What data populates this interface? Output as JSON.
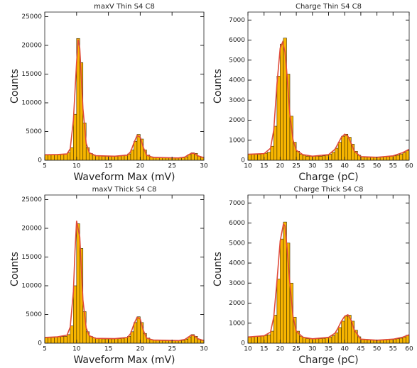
{
  "chart_data": [
    {
      "type": "histogram",
      "title": "maxV  Thin S4 C8",
      "x_label": "Waveform Max (mV)",
      "y_label": "Counts",
      "bins": [
        5,
        5.5,
        6,
        6.5,
        7,
        7.5,
        8,
        8.5,
        9,
        9.5,
        10,
        10.5,
        11,
        11.5,
        12,
        12.5,
        13,
        13.5,
        14,
        14.5,
        15,
        15.5,
        16,
        16.5,
        17,
        17.5,
        18,
        18.5,
        19,
        19.5,
        20,
        20.5,
        21,
        21.5,
        22,
        22.5,
        23,
        23.5,
        24,
        24.5,
        25,
        25.5,
        26,
        26.5,
        27,
        27.5,
        28,
        28.5,
        29,
        29.5,
        30
      ],
      "values": [
        900,
        950,
        950,
        1000,
        1000,
        1050,
        1100,
        1300,
        2200,
        8000,
        21200,
        17000,
        6500,
        2200,
        1200,
        900,
        800,
        750,
        700,
        700,
        700,
        700,
        700,
        750,
        800,
        900,
        1100,
        1800,
        3300,
        4500,
        3700,
        1800,
        900,
        600,
        500,
        450,
        450,
        400,
        400,
        400,
        400,
        400,
        400,
        450,
        600,
        1000,
        1300,
        1200,
        700,
        500
      ],
      "color": "#f7b500",
      "fit": {
        "color": "#e04a3a",
        "x": [
          5,
          7,
          8.5,
          9,
          9.5,
          10,
          10.25,
          10.5,
          11,
          11.5,
          12,
          13,
          16,
          18,
          18.5,
          19,
          19.5,
          20,
          20.5,
          21,
          22,
          26,
          27,
          27.5,
          28,
          28.5,
          29,
          30
        ],
        "values": [
          950,
          1000,
          1100,
          2000,
          7000,
          17000,
          21000,
          19500,
          9000,
          3000,
          1300,
          800,
          700,
          900,
          1500,
          3000,
          4300,
          4000,
          2200,
          900,
          500,
          400,
          550,
          900,
          1200,
          1200,
          800,
          450
        ]
      },
      "xlim": [
        5,
        30
      ],
      "ylim": [
        0,
        25800
      ],
      "xticks": [
        5,
        10,
        15,
        20,
        25,
        30
      ],
      "yticks": [
        0,
        5000,
        10000,
        15000,
        20000,
        25000
      ]
    },
    {
      "type": "histogram",
      "title": "Charge  Thin S4 C8",
      "x_label": "Charge (pC)",
      "y_label": "Counts",
      "bins": [
        10,
        11,
        12,
        13,
        14,
        15,
        16,
        17,
        18,
        19,
        20,
        21,
        22,
        23,
        24,
        25,
        26,
        27,
        28,
        29,
        30,
        31,
        32,
        33,
        34,
        35,
        36,
        37,
        38,
        39,
        40,
        41,
        42,
        43,
        44,
        45,
        46,
        47,
        48,
        49,
        50,
        51,
        52,
        53,
        54,
        55,
        56,
        57,
        58,
        59,
        60
      ],
      "values": [
        300,
        300,
        300,
        300,
        320,
        350,
        400,
        700,
        1700,
        4200,
        5800,
        6100,
        4300,
        2200,
        900,
        450,
        300,
        250,
        200,
        200,
        200,
        200,
        200,
        220,
        250,
        300,
        400,
        600,
        900,
        1200,
        1300,
        1150,
        800,
        450,
        250,
        180,
        150,
        150,
        150,
        150,
        150,
        150,
        170,
        180,
        200,
        220,
        250,
        300,
        380,
        480
      ],
      "color": "#f7b500",
      "fit": {
        "color": "#e04a3a",
        "x": [
          10,
          15,
          17,
          18,
          19,
          20,
          20.75,
          21.5,
          22,
          23,
          24,
          25,
          27,
          30,
          35,
          37,
          38,
          39,
          40,
          41,
          42,
          43,
          45,
          50,
          55,
          58,
          60
        ],
        "values": [
          300,
          330,
          600,
          1500,
          3800,
          5600,
          5900,
          5400,
          4500,
          2300,
          1000,
          500,
          280,
          200,
          280,
          550,
          850,
          1150,
          1300,
          1200,
          850,
          450,
          180,
          150,
          220,
          380,
          550
        ]
      },
      "xlim": [
        10,
        60
      ],
      "ylim": [
        0,
        7400
      ],
      "xticks": [
        10,
        15,
        20,
        25,
        30,
        35,
        40,
        45,
        50,
        55,
        60
      ],
      "yticks": [
        0,
        1000,
        2000,
        3000,
        4000,
        5000,
        6000,
        7000
      ]
    },
    {
      "type": "histogram",
      "title": "maxV  Thick S4 C8",
      "x_label": "Waveform Max (mV)",
      "y_label": "Counts",
      "bins": [
        5,
        5.5,
        6,
        6.5,
        7,
        7.5,
        8,
        8.5,
        9,
        9.5,
        10,
        10.5,
        11,
        11.5,
        12,
        12.5,
        13,
        13.5,
        14,
        14.5,
        15,
        15.5,
        16,
        16.5,
        17,
        17.5,
        18,
        18.5,
        19,
        19.5,
        20,
        20.5,
        21,
        21.5,
        22,
        22.5,
        23,
        23.5,
        24,
        24.5,
        25,
        25.5,
        26,
        26.5,
        27,
        27.5,
        28,
        28.5,
        29,
        29.5,
        30
      ],
      "values": [
        950,
        1000,
        1000,
        1050,
        1100,
        1150,
        1200,
        1500,
        3000,
        10000,
        20800,
        16500,
        5500,
        2000,
        1200,
        950,
        850,
        800,
        750,
        750,
        750,
        750,
        800,
        800,
        850,
        950,
        1200,
        2000,
        3600,
        4600,
        3600,
        1700,
        900,
        650,
        550,
        500,
        480,
        450,
        450,
        450,
        450,
        450,
        460,
        500,
        700,
        1100,
        1500,
        1200,
        700,
        500
      ],
      "color": "#f7b500",
      "fit": {
        "color": "#e04a3a",
        "x": [
          5,
          7,
          8.5,
          9,
          9.5,
          9.75,
          10,
          10.5,
          11,
          11.5,
          12,
          13,
          16,
          18,
          18.5,
          19,
          19.5,
          20,
          20.5,
          21,
          22,
          26,
          27,
          27.5,
          28,
          28.5,
          29,
          30
        ],
        "values": [
          1000,
          1100,
          1400,
          2800,
          9000,
          16000,
          21300,
          18500,
          7500,
          2700,
          1300,
          850,
          800,
          1000,
          1700,
          3300,
          4500,
          4200,
          2200,
          900,
          550,
          450,
          650,
          1000,
          1400,
          1300,
          800,
          450
        ]
      },
      "xlim": [
        5,
        30
      ],
      "ylim": [
        0,
        25800
      ],
      "xticks": [
        5,
        10,
        15,
        20,
        25,
        30
      ],
      "yticks": [
        0,
        5000,
        10000,
        15000,
        20000,
        25000
      ]
    },
    {
      "type": "histogram",
      "title": "Charge  Thick S4 C8",
      "x_label": "Charge (pC)",
      "y_label": "Counts",
      "bins": [
        10,
        11,
        12,
        13,
        14,
        15,
        16,
        17,
        18,
        19,
        20,
        21,
        22,
        23,
        24,
        25,
        26,
        27,
        28,
        29,
        30,
        31,
        32,
        33,
        34,
        35,
        36,
        37,
        38,
        39,
        40,
        41,
        42,
        43,
        44,
        45,
        46,
        47,
        48,
        49,
        50,
        51,
        52,
        53,
        54,
        55,
        56,
        57,
        58,
        59,
        60
      ],
      "values": [
        300,
        320,
        330,
        340,
        350,
        380,
        420,
        600,
        1400,
        3200,
        5200,
        6050,
        5000,
        3000,
        1300,
        600,
        350,
        280,
        230,
        220,
        220,
        220,
        230,
        240,
        260,
        300,
        380,
        520,
        780,
        1100,
        1350,
        1400,
        1100,
        650,
        320,
        200,
        170,
        160,
        150,
        150,
        150,
        150,
        160,
        170,
        180,
        200,
        220,
        250,
        300,
        400
      ],
      "color": "#f7b500",
      "fit": {
        "color": "#e04a3a",
        "x": [
          10,
          15,
          17,
          18,
          19,
          20,
          21,
          21.5,
          22,
          23,
          24,
          25,
          27,
          30,
          35,
          37,
          38,
          39,
          40,
          41,
          42,
          43,
          45,
          50,
          55,
          58,
          60
        ],
        "values": [
          310,
          370,
          550,
          1300,
          3100,
          5100,
          5950,
          5850,
          5000,
          3000,
          1300,
          600,
          300,
          220,
          290,
          500,
          780,
          1100,
          1350,
          1420,
          1150,
          650,
          200,
          150,
          200,
          300,
          420
        ]
      },
      "xlim": [
        10,
        60
      ],
      "ylim": [
        0,
        7400
      ],
      "xticks": [
        10,
        15,
        20,
        25,
        30,
        35,
        40,
        45,
        50,
        55,
        60
      ],
      "yticks": [
        0,
        1000,
        2000,
        3000,
        4000,
        5000,
        6000,
        7000
      ]
    }
  ]
}
